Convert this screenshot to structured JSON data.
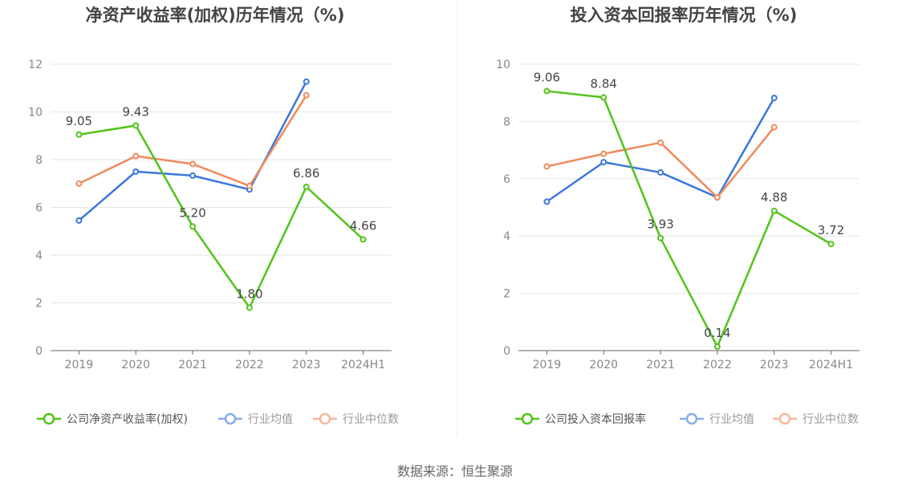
{
  "source": "数据来源：恒生聚源",
  "chart_data": [
    {
      "type": "line",
      "title": "净资产收益率(加权)历年情况（%)",
      "categories": [
        "2019",
        "2020",
        "2021",
        "2022",
        "2023",
        "2024H1"
      ],
      "ylim": [
        0,
        12
      ],
      "yticks": [
        "0",
        "2",
        "4",
        "6",
        "8",
        "10",
        "12"
      ],
      "grid": true,
      "legend_position": "bottom",
      "series": [
        {
          "name": "公司净资产收益率(加权)",
          "color": "#52c41a",
          "values": [
            9.05,
            9.43,
            5.2,
            1.8,
            6.86,
            4.66
          ],
          "labels": [
            "9.05",
            "9.43",
            "5.20",
            "1.80",
            "6.86",
            "4.66"
          ]
        },
        {
          "name": "行业均值",
          "color": "#3a78dd",
          "values": [
            5.45,
            7.5,
            7.33,
            6.75,
            11.27,
            null
          ]
        },
        {
          "name": "行业中位数",
          "color": "#f08a5d",
          "values": [
            7.0,
            8.15,
            7.82,
            6.9,
            10.7,
            null
          ]
        }
      ]
    },
    {
      "type": "line",
      "title": "投入资本回报率历年情况（%)",
      "categories": [
        "2019",
        "2020",
        "2021",
        "2022",
        "2023",
        "2024H1"
      ],
      "ylim": [
        0,
        10
      ],
      "yticks": [
        "0",
        "2",
        "4",
        "6",
        "8",
        "10"
      ],
      "grid": true,
      "legend_position": "bottom",
      "series": [
        {
          "name": "公司投入资本回报率",
          "color": "#52c41a",
          "values": [
            9.06,
            8.84,
            3.93,
            0.14,
            4.88,
            3.72
          ],
          "labels": [
            "9.06",
            "8.84",
            "3.93",
            "0.14",
            "4.88",
            "3.72"
          ]
        },
        {
          "name": "行业均值",
          "color": "#3a78dd",
          "values": [
            5.2,
            6.58,
            6.22,
            5.35,
            8.82,
            null
          ]
        },
        {
          "name": "行业中位数",
          "color": "#f08a5d",
          "values": [
            6.43,
            6.87,
            7.26,
            5.35,
            7.8,
            null
          ]
        }
      ]
    }
  ]
}
